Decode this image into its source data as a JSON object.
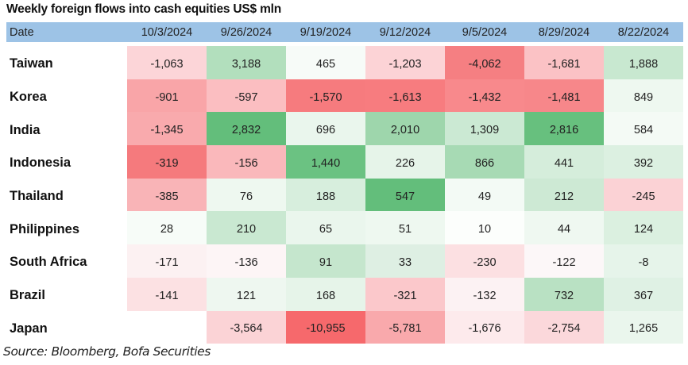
{
  "chart_data": {
    "type": "heatmap",
    "title": "Weekly foreign flows into cash equities US$ mln",
    "row_header": "Date",
    "columns": [
      "10/3/2024",
      "9/26/2024",
      "9/19/2024",
      "9/12/2024",
      "9/5/2024",
      "8/29/2024",
      "8/22/2024"
    ],
    "rows": [
      {
        "label": "Taiwan",
        "values": [
          "-1,063",
          "3,188",
          "465",
          "-1,203",
          "-4,062",
          "-1,681",
          "1,888"
        ],
        "colors": [
          "#fcd5d8",
          "#b2dfbd",
          "#f7fbf8",
          "#fcd3d6",
          "#f57f82",
          "#fbc2c5",
          "#c8e8d0"
        ]
      },
      {
        "label": "Korea",
        "values": [
          "-901",
          "-597",
          "-1,570",
          "-1,613",
          "-1,432",
          "-1,481",
          "849"
        ],
        "colors": [
          "#f9a5a8",
          "#fbbec1",
          "#f67b7e",
          "#f77c7f",
          "#f8898c",
          "#f7878a",
          "#eef8f0"
        ]
      },
      {
        "label": "India",
        "values": [
          "-1,345",
          "2,832",
          "696",
          "2,010",
          "1,309",
          "2,816",
          "584"
        ],
        "colors": [
          "#f9aaad",
          "#63be7b",
          "#eaf6ed",
          "#9ed6ac",
          "#cbe9d3",
          "#67c07e",
          "#f4faf5"
        ]
      },
      {
        "label": "Indonesia",
        "values": [
          "-319",
          "-156",
          "1,440",
          "226",
          "866",
          "441",
          "392"
        ],
        "colors": [
          "#f57a7d",
          "#fab8bb",
          "#6bc282",
          "#e6f4e9",
          "#a7dab4",
          "#d5eddb",
          "#dcf0e1"
        ]
      },
      {
        "label": "Thailand",
        "values": [
          "-385",
          "76",
          "188",
          "547",
          "49",
          "212",
          "-245"
        ],
        "colors": [
          "#f9b4b7",
          "#eef8f0",
          "#d7eedd",
          "#63be7b",
          "#f3faf5",
          "#cde9d4",
          "#fbd2d5"
        ]
      },
      {
        "label": "Philippines",
        "values": [
          "28",
          "210",
          "65",
          "51",
          "10",
          "44",
          "124"
        ],
        "colors": [
          "#f7fcf8",
          "#c9e8d1",
          "#eaf6ed",
          "#eef8f0",
          "#fcfefc",
          "#eff8f1",
          "#dbf0e0"
        ]
      },
      {
        "label": "South Africa",
        "values": [
          "-171",
          "-136",
          "91",
          "33",
          "-230",
          "-122",
          "-8"
        ],
        "colors": [
          "#fcf1f2",
          "#fdf5f6",
          "#c5e6cd",
          "#deefe3",
          "#fce0e2",
          "#fcf7f8",
          "#e6f4ea"
        ]
      },
      {
        "label": "Brazil",
        "values": [
          "-141",
          "121",
          "168",
          "-321",
          "-132",
          "732",
          "367"
        ],
        "colors": [
          "#fce1e3",
          "#eef7f0",
          "#e6f4e9",
          "#fbc8cb",
          "#fcf2f3",
          "#b9e1c3",
          "#dff1e4"
        ]
      },
      {
        "label": "Japan",
        "values": [
          "",
          "-3,564",
          "-10,955",
          "-5,781",
          "-1,676",
          "-2,754",
          "1,265"
        ],
        "colors": [
          "#ffffff",
          "#fbd3d6",
          "#f6696c",
          "#f9a9ac",
          "#fdeaec",
          "#fbd8db",
          "#eaf6ed"
        ]
      }
    ],
    "header_color": "#9dc3e6"
  },
  "source": "Source: Bloomberg, Bofa Securities"
}
